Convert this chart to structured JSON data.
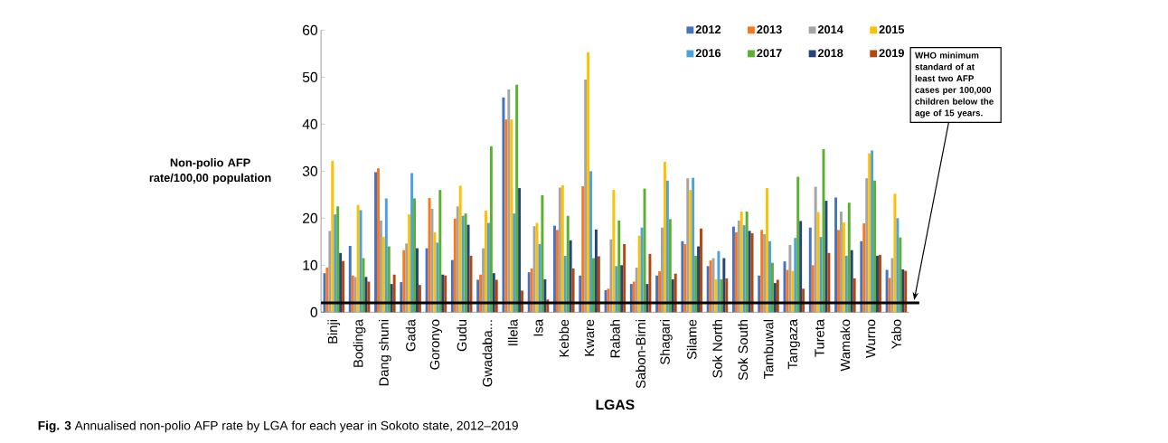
{
  "chart_data": {
    "type": "bar",
    "categories": [
      "Binji",
      "Bodinga",
      "Dang shuni",
      "Gada",
      "Goronyo",
      "Gudu",
      "Gwadaba...",
      "Illela",
      "Isa",
      "Kebbe",
      "Kware",
      "Rabah",
      "Sabon-Birni",
      "Shagari",
      "Silame",
      "Sok North",
      "Sok South",
      "Tambuwal",
      "Tangaza",
      "Tureta",
      "Wamako",
      "Wurno",
      "Yabo"
    ],
    "series": [
      {
        "name": "2012",
        "color": "#4472c4",
        "values": [
          8.3,
          14.1,
          29.8,
          6.4,
          13.6,
          11.1,
          6.9,
          45.7,
          8.5,
          18.4,
          7.8,
          4.7,
          6,
          7.8,
          15.1,
          9.8,
          18.2,
          7.8,
          10.8,
          18,
          24.4,
          15.1,
          9
        ]
      },
      {
        "name": "2013",
        "color": "#ff7518",
        "values": [
          9.5,
          7.8,
          30.6,
          13.2,
          24.3,
          19.9,
          8,
          41,
          9.3,
          17.5,
          26.8,
          5,
          6.5,
          8.7,
          14.5,
          11,
          17,
          17.5,
          9,
          10,
          17.5,
          18.9,
          7.3
        ]
      },
      {
        "name": "2014",
        "color": "#a5a5a5",
        "values": [
          17.3,
          7.5,
          19.5,
          14.6,
          22,
          22.5,
          13.6,
          47.4,
          18.3,
          26.5,
          49.5,
          15.5,
          9.5,
          18,
          28.5,
          11.5,
          19.5,
          16.6,
          14.3,
          26.7,
          21.4,
          28.5,
          11.5
        ]
      },
      {
        "name": "2015",
        "color": "#ffc000",
        "values": [
          32.2,
          22.8,
          16,
          20.8,
          17,
          26.9,
          21.6,
          41,
          19,
          27,
          55.3,
          26,
          16.3,
          32,
          26,
          7,
          21.4,
          26.4,
          8.8,
          21.3,
          19.1,
          33.8,
          25.2
        ]
      },
      {
        "name": "2016",
        "color": "#4aa3df",
        "values": [
          20.8,
          21.7,
          24.2,
          29.6,
          14.8,
          20.5,
          19,
          21,
          14.5,
          12,
          30,
          9.8,
          18,
          28,
          28.6,
          13,
          18.5,
          15.1,
          15.8,
          16,
          12,
          34.4,
          20
        ]
      },
      {
        "name": "2017",
        "color": "#5bb030",
        "values": [
          22.5,
          11.5,
          14,
          24.2,
          26,
          21,
          35.3,
          48.4,
          24.9,
          20.5,
          11.5,
          19.5,
          26.3,
          19.8,
          12,
          7,
          21.4,
          10.5,
          28.8,
          34.7,
          23.3,
          28,
          15.9
        ]
      },
      {
        "name": "2018",
        "color": "#264478",
        "values": [
          12.6,
          7.5,
          6,
          13.6,
          8,
          18.6,
          8.3,
          26.4,
          7,
          15.3,
          17.6,
          10,
          6,
          7,
          14,
          11.5,
          17.3,
          6.2,
          19.4,
          23.7,
          13.2,
          12,
          9.1
        ]
      },
      {
        "name": "2019",
        "color": "#b5460f",
        "values": [
          10.9,
          6.5,
          8,
          5.8,
          7.8,
          12,
          6.9,
          4.6,
          2.7,
          9.3,
          11.9,
          14.5,
          12.4,
          8.2,
          17.8,
          7.2,
          16.8,
          6.9,
          5,
          12.6,
          7.2,
          12.2,
          8.8
        ]
      }
    ],
    "xlabel": "LGAS",
    "ylabel": "Non-polio AFP rate/100,00 population",
    "ylim": [
      0,
      60
    ],
    "yticks": [
      0,
      10,
      20,
      30,
      40,
      50,
      60
    ],
    "legend": "top right",
    "ref_lines": [
      {
        "axis": "y",
        "value": 2,
        "label": "WHO minimum standard of at least two AFP cases per 100,000 children below the age of 15 years.",
        "color": "#000000"
      }
    ],
    "annotations": [
      "**Fig. 3** Annualised non-polio AFP rate by LGA for each year in Sokoto state, 2012–2019"
    ]
  }
}
